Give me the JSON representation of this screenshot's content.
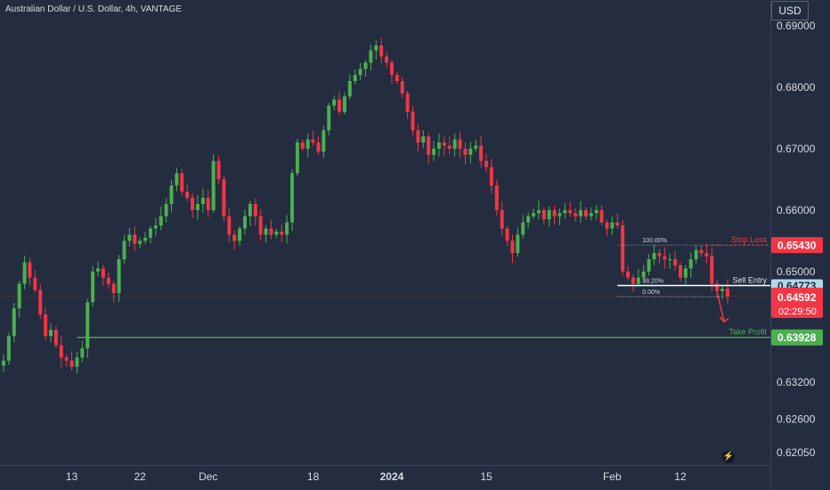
{
  "header": {
    "title": "Australian Dollar / U.S. Dollar, 4h, VANTAGE"
  },
  "axis": {
    "currency": "USD"
  },
  "colors": {
    "background": "#232d3f",
    "up": "#4caf50",
    "down": "#f23645",
    "axis_text": "#d7dbe3"
  },
  "icons": {
    "flash": "lightning-icon"
  },
  "chart_data": {
    "type": "candlestick",
    "symbol": "AUDUSD",
    "timeframe": "4h",
    "ylim": [
      0.6185,
      0.6942
    ],
    "y_ticks": [
      "0.69000",
      "0.68000",
      "0.67000",
      "0.66000",
      "0.65000",
      "0.63200",
      "0.62600",
      "0.62050"
    ],
    "y_tick_values": [
      0.69,
      0.68,
      0.67,
      0.66,
      0.65,
      0.632,
      0.626,
      0.6205
    ],
    "x_ticks": [
      {
        "label": "13",
        "index": 13
      },
      {
        "label": "22",
        "index": 26
      },
      {
        "label": "Dec",
        "index": 39
      },
      {
        "label": "18",
        "index": 59
      },
      {
        "label": "2024",
        "index": 74
      },
      {
        "label": "15",
        "index": 92
      },
      {
        "label": "Feb",
        "index": 116
      },
      {
        "label": "12",
        "index": 129
      }
    ],
    "close_path": [
      [
        0,
        0.6355
      ],
      [
        1,
        0.6395
      ],
      [
        2,
        0.644
      ],
      [
        3,
        0.648
      ],
      [
        4,
        0.6515
      ],
      [
        5,
        0.649
      ],
      [
        6,
        0.647
      ],
      [
        7,
        0.643
      ],
      [
        8,
        0.6395
      ],
      [
        9,
        0.6405
      ],
      [
        10,
        0.638
      ],
      [
        11,
        0.636
      ],
      [
        12,
        0.6355
      ],
      [
        13,
        0.6345
      ],
      [
        14,
        0.636
      ],
      [
        15,
        0.6375
      ],
      [
        16,
        0.645
      ],
      [
        17,
        0.65
      ],
      [
        18,
        0.6505
      ],
      [
        19,
        0.649
      ],
      [
        20,
        0.648
      ],
      [
        21,
        0.6465
      ],
      [
        22,
        0.652
      ],
      [
        23,
        0.655
      ],
      [
        24,
        0.656
      ],
      [
        25,
        0.6545
      ],
      [
        26,
        0.655
      ],
      [
        27,
        0.6555
      ],
      [
        28,
        0.657
      ],
      [
        29,
        0.6575
      ],
      [
        30,
        0.659
      ],
      [
        31,
        0.661
      ],
      [
        32,
        0.664
      ],
      [
        33,
        0.666
      ],
      [
        34,
        0.663
      ],
      [
        35,
        0.662
      ],
      [
        36,
        0.66
      ],
      [
        37,
        0.661
      ],
      [
        38,
        0.662
      ],
      [
        39,
        0.66
      ],
      [
        40,
        0.668
      ],
      [
        41,
        0.665
      ],
      [
        42,
        0.659
      ],
      [
        43,
        0.656
      ],
      [
        44,
        0.655
      ],
      [
        45,
        0.657
      ],
      [
        46,
        0.659
      ],
      [
        47,
        0.661
      ],
      [
        48,
        0.659
      ],
      [
        49,
        0.656
      ],
      [
        50,
        0.657
      ],
      [
        51,
        0.656
      ],
      [
        52,
        0.6565
      ],
      [
        53,
        0.656
      ],
      [
        54,
        0.658
      ],
      [
        55,
        0.666
      ],
      [
        56,
        0.671
      ],
      [
        57,
        0.67
      ],
      [
        58,
        0.6715
      ],
      [
        59,
        0.671
      ],
      [
        60,
        0.6695
      ],
      [
        61,
        0.673
      ],
      [
        62,
        0.677
      ],
      [
        63,
        0.678
      ],
      [
        64,
        0.676
      ],
      [
        65,
        0.6785
      ],
      [
        66,
        0.681
      ],
      [
        67,
        0.682
      ],
      [
        68,
        0.683
      ],
      [
        69,
        0.684
      ],
      [
        70,
        0.686
      ],
      [
        71,
        0.6868
      ],
      [
        72,
        0.685
      ],
      [
        73,
        0.684
      ],
      [
        74,
        0.682
      ],
      [
        75,
        0.681
      ],
      [
        76,
        0.679
      ],
      [
        77,
        0.676
      ],
      [
        78,
        0.673
      ],
      [
        79,
        0.671
      ],
      [
        80,
        0.672
      ],
      [
        81,
        0.669
      ],
      [
        82,
        0.67
      ],
      [
        83,
        0.671
      ],
      [
        84,
        0.6705
      ],
      [
        85,
        0.67
      ],
      [
        86,
        0.6715
      ],
      [
        87,
        0.67
      ],
      [
        88,
        0.669
      ],
      [
        89,
        0.67
      ],
      [
        90,
        0.6705
      ],
      [
        91,
        0.668
      ],
      [
        92,
        0.667
      ],
      [
        93,
        0.664
      ],
      [
        94,
        0.66
      ],
      [
        95,
        0.657
      ],
      [
        96,
        0.655
      ],
      [
        97,
        0.653
      ],
      [
        98,
        0.656
      ],
      [
        99,
        0.658
      ],
      [
        100,
        0.659
      ],
      [
        101,
        0.6595
      ],
      [
        102,
        0.66
      ],
      [
        103,
        0.6585
      ],
      [
        104,
        0.66
      ],
      [
        105,
        0.659
      ],
      [
        106,
        0.6595
      ],
      [
        107,
        0.66
      ],
      [
        108,
        0.6595
      ],
      [
        109,
        0.659
      ],
      [
        110,
        0.66
      ],
      [
        111,
        0.659
      ],
      [
        112,
        0.6595
      ],
      [
        113,
        0.66
      ],
      [
        114,
        0.658
      ],
      [
        115,
        0.657
      ],
      [
        116,
        0.658
      ],
      [
        117,
        0.6575
      ],
      [
        118,
        0.65
      ],
      [
        119,
        0.649
      ],
      [
        120,
        0.648
      ],
      [
        121,
        0.649
      ],
      [
        122,
        0.65
      ],
      [
        123,
        0.652
      ],
      [
        124,
        0.653
      ],
      [
        125,
        0.6525
      ],
      [
        126,
        0.652
      ],
      [
        127,
        0.652
      ],
      [
        128,
        0.651
      ],
      [
        129,
        0.649
      ],
      [
        130,
        0.6505
      ],
      [
        131,
        0.652
      ],
      [
        132,
        0.6535
      ],
      [
        133,
        0.653
      ],
      [
        134,
        0.6525
      ],
      [
        135,
        0.648
      ],
      [
        136,
        0.6468
      ],
      [
        137,
        0.6472
      ],
      [
        138,
        0.6459
      ]
    ],
    "fibonacci": [
      {
        "label": "100.00%",
        "value": 0.6543
      },
      {
        "label": "38.20%",
        "value": 0.64773
      },
      {
        "label": "0.00%",
        "value": 0.6459
      }
    ],
    "trade_levels": [
      {
        "label": "Stop Loss",
        "value": 0.6543,
        "price_label": "0.65430",
        "color": "#f23645"
      },
      {
        "label": "Sell Entry",
        "value": 0.64773,
        "price_label": "0.64773",
        "color": "#ffffff"
      },
      {
        "label": "Take Profit",
        "value": 0.63928,
        "price_label": "0.63928",
        "color": "#4caf50"
      }
    ],
    "last_price": {
      "value": 0.64592,
      "label": "0.64592",
      "countdown": "02:29:50"
    },
    "grid": false,
    "legend": "none"
  }
}
